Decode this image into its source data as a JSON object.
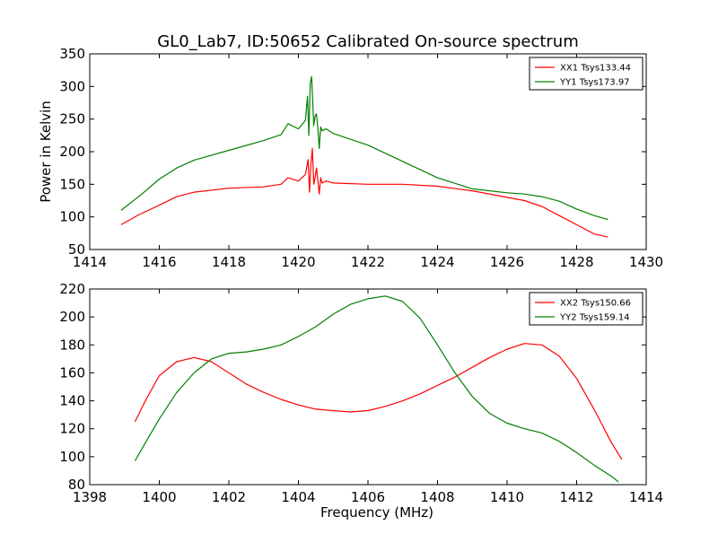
{
  "figure": {
    "title": "GL0_Lab7, ID:50652 Calibrated On-source spectrum"
  },
  "chart_data": [
    {
      "type": "line",
      "ylabel": "Power in Kelvin",
      "xlim": [
        1414,
        1430
      ],
      "ylim": [
        50,
        350
      ],
      "xticks": [
        "1414",
        "1416",
        "1418",
        "1420",
        "1422",
        "1424",
        "1426",
        "1428",
        "1430"
      ],
      "yticks": [
        "50",
        "100",
        "150",
        "200",
        "250",
        "300",
        "350"
      ],
      "legend_position": "top-right",
      "series": [
        {
          "name": "XX1 Tsys133.44",
          "color": "#ff0000",
          "x": [
            1414.9,
            1415.4,
            1416,
            1416.5,
            1417,
            1418,
            1419,
            1419.5,
            1419.7,
            1420,
            1420.2,
            1420.28,
            1420.32,
            1420.36,
            1420.4,
            1420.44,
            1420.48,
            1420.52,
            1420.56,
            1420.6,
            1420.64,
            1420.68,
            1420.8,
            1421,
            1422,
            1423,
            1424,
            1425,
            1426,
            1426.5,
            1427,
            1427.5,
            1428,
            1428.5,
            1428.9
          ],
          "y": [
            88,
            103,
            118,
            131,
            138,
            144,
            146,
            150,
            160,
            155,
            165,
            188,
            138,
            180,
            205,
            150,
            160,
            175,
            155,
            135,
            160,
            152,
            155,
            152,
            150,
            150,
            147,
            140,
            130,
            125,
            116,
            102,
            88,
            74,
            69
          ]
        },
        {
          "name": "YY1 Tsys173.97",
          "color": "#008000",
          "x": [
            1414.9,
            1415.5,
            1416,
            1416.5,
            1417,
            1418,
            1419,
            1419.5,
            1419.7,
            1420,
            1420.2,
            1420.26,
            1420.3,
            1420.34,
            1420.38,
            1420.44,
            1420.48,
            1420.52,
            1420.56,
            1420.6,
            1420.64,
            1420.68,
            1420.8,
            1421,
            1422,
            1423,
            1424,
            1425,
            1426,
            1426.5,
            1427,
            1427.5,
            1428,
            1428.5,
            1428.9
          ],
          "y": [
            110,
            135,
            158,
            175,
            187,
            202,
            217,
            226,
            243,
            235,
            248,
            285,
            225,
            305,
            315,
            240,
            255,
            258,
            235,
            205,
            238,
            232,
            235,
            228,
            210,
            185,
            160,
            143,
            137,
            135,
            131,
            124,
            112,
            102,
            96
          ]
        }
      ]
    },
    {
      "type": "line",
      "xlabel": "Frequency (MHz)",
      "xlim": [
        1398,
        1414
      ],
      "ylim": [
        80,
        220
      ],
      "xticks": [
        "1398",
        "1400",
        "1402",
        "1404",
        "1406",
        "1408",
        "1410",
        "1412",
        "1414"
      ],
      "yticks": [
        "80",
        "100",
        "120",
        "140",
        "160",
        "180",
        "200",
        "220"
      ],
      "legend_position": "top-right",
      "series": [
        {
          "name": "XX2 Tsys150.66",
          "color": "#ff0000",
          "x": [
            1399.3,
            1399.6,
            1400,
            1400.5,
            1401,
            1401.5,
            1402,
            1402.5,
            1403,
            1403.5,
            1404,
            1404.5,
            1405,
            1405.5,
            1406,
            1406.5,
            1407,
            1407.5,
            1408,
            1408.5,
            1409,
            1409.5,
            1410,
            1410.5,
            1411,
            1411.5,
            1412,
            1412.5,
            1413,
            1413.3
          ],
          "y": [
            125,
            140,
            158,
            168,
            171,
            168,
            160,
            152,
            146,
            141,
            137,
            134,
            133,
            132,
            133,
            136,
            140,
            145,
            151,
            157,
            164,
            171,
            177,
            181,
            180,
            172,
            156,
            134,
            110,
            98
          ]
        },
        {
          "name": "YY2 Tsys159.14",
          "color": "#008000",
          "x": [
            1399.3,
            1399.6,
            1400,
            1400.5,
            1401,
            1401.5,
            1402,
            1402.5,
            1403,
            1403.5,
            1404,
            1404.5,
            1405,
            1405.5,
            1406,
            1406.5,
            1407,
            1407.5,
            1408,
            1408.5,
            1409,
            1409.5,
            1410,
            1410.5,
            1411,
            1411.5,
            1412,
            1412.5,
            1413,
            1413.2
          ],
          "y": [
            97,
            110,
            127,
            146,
            160,
            170,
            174,
            175,
            177,
            180,
            186,
            193,
            202,
            209,
            213,
            215,
            211,
            199,
            180,
            160,
            143,
            131,
            124,
            120,
            117,
            111,
            103,
            94,
            86,
            82
          ]
        }
      ]
    }
  ]
}
